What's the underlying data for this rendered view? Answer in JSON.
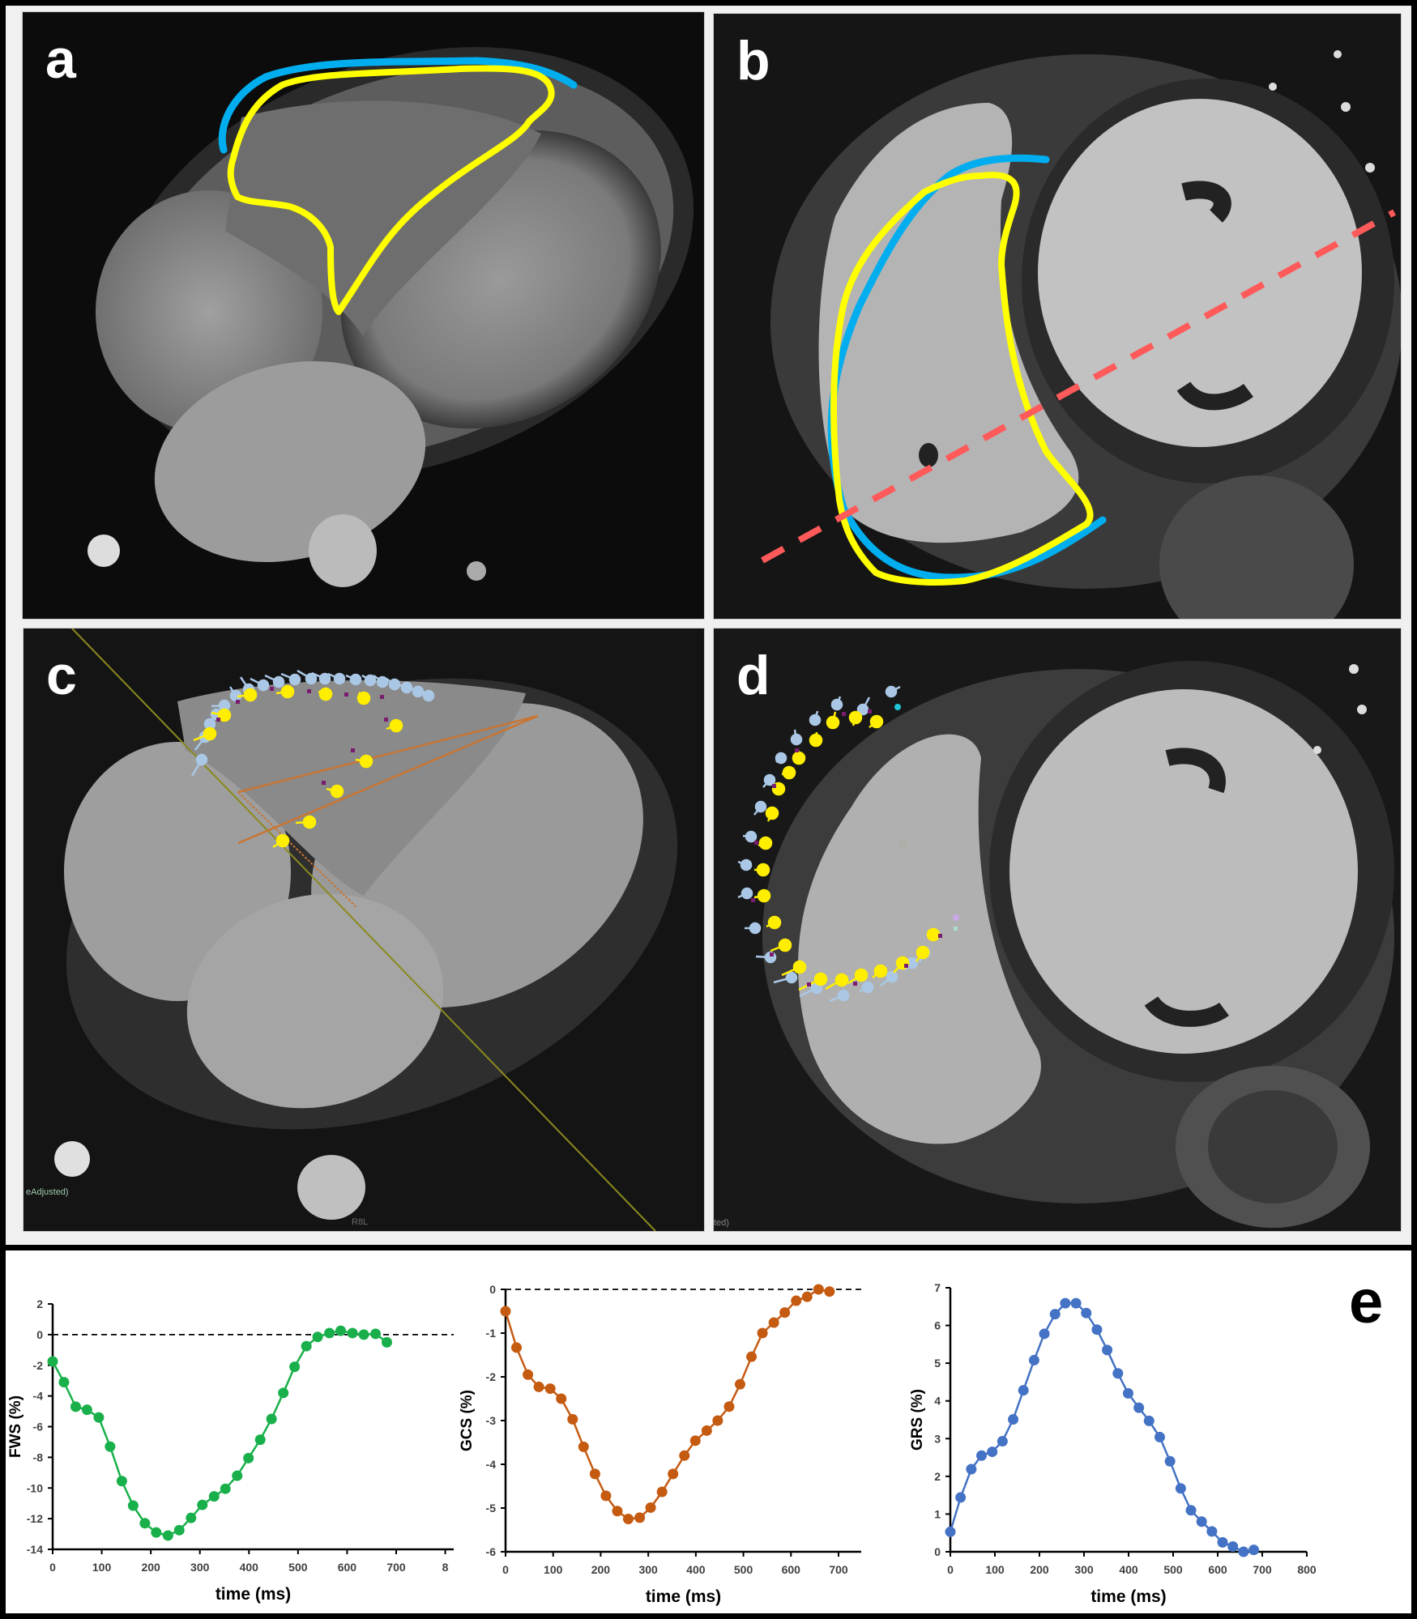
{
  "figure": {
    "panels": [
      {
        "id": "a",
        "label": "a",
        "description": "Four-chamber cine MRI with RV free wall (blue) and RV endocardial (yellow) contours"
      },
      {
        "id": "b",
        "label": "b",
        "description": "Short-axis cine MRI with RV epicardial (blue) and endocardial (yellow) contours and red dashed line"
      },
      {
        "id": "c",
        "label": "c",
        "description": "Four-chamber feature tracking with tracking points",
        "overlay_text": [
          "eAdjusted)",
          "R8L"
        ]
      },
      {
        "id": "d",
        "label": "d",
        "description": "Short-axis feature tracking with tracking points",
        "overlay_text": [
          "ted)"
        ]
      }
    ],
    "charts_label": "e",
    "colors": {
      "epi_contour": "#00aeef",
      "endo_contour": "#ffff00",
      "dashed_line": "#ff5a5a",
      "fws_series": "#19b04b",
      "gcs_series": "#c55a11",
      "grs_series": "#4472c4",
      "tracking_outer": "#aac8e6",
      "tracking_inner": "#ffee00",
      "tracking_mid": "#7a1d6e"
    }
  },
  "chart_data": [
    {
      "type": "line",
      "title": "",
      "xlabel": "time (ms)",
      "ylabel": "FWS (%)",
      "xlim": [
        0,
        800
      ],
      "ylim": [
        -14,
        2
      ],
      "x_ticks": [
        "0",
        "100",
        "200",
        "300",
        "400",
        "500",
        "600",
        "700",
        "8"
      ],
      "y_ticks": [
        "2",
        "0",
        "-2",
        "-4",
        "-6",
        "-8",
        "-10",
        "-12",
        "-14"
      ],
      "reference_line": {
        "y": 0,
        "style": "dashed"
      },
      "grid": false,
      "series": [
        {
          "name": "FWS",
          "color": "#19b04b",
          "x": [
            0,
            23,
            47,
            70,
            94,
            117,
            141,
            164,
            188,
            211,
            235,
            258,
            282,
            305,
            329,
            352,
            376,
            399,
            423,
            446,
            470,
            493,
            517,
            540,
            564,
            587,
            611,
            634,
            658,
            681
          ],
          "values": [
            -1.75,
            -3.1,
            -4.7,
            -4.9,
            -5.4,
            -7.3,
            -9.55,
            -11.15,
            -12.3,
            -12.9,
            -13.1,
            -12.75,
            -11.95,
            -11.1,
            -10.55,
            -10.05,
            -9.2,
            -8.05,
            -6.85,
            -5.5,
            -3.8,
            -2.1,
            -0.75,
            -0.15,
            0.1,
            0.25,
            0.1,
            0.0,
            0.05,
            -0.5
          ]
        }
      ]
    },
    {
      "type": "line",
      "title": "",
      "xlabel": "time (ms)",
      "ylabel": "GCS (%)",
      "xlim": [
        0,
        750
      ],
      "ylim": [
        -6,
        0
      ],
      "x_ticks": [
        "0",
        "100",
        "200",
        "300",
        "400",
        "500",
        "600",
        "700"
      ],
      "y_ticks": [
        "0",
        "-1",
        "-2",
        "-3",
        "-4",
        "-5",
        "-6"
      ],
      "reference_line": {
        "y": 0,
        "style": "dashed"
      },
      "grid": false,
      "series": [
        {
          "name": "GCS",
          "color": "#c55a11",
          "x": [
            0,
            23,
            47,
            70,
            94,
            117,
            141,
            164,
            188,
            211,
            235,
            258,
            282,
            305,
            329,
            352,
            376,
            399,
            423,
            446,
            470,
            493,
            517,
            540,
            564,
            587,
            611,
            634,
            658,
            681
          ],
          "values": [
            -0.5,
            -1.33,
            -1.95,
            -2.23,
            -2.27,
            -2.5,
            -2.97,
            -3.6,
            -4.22,
            -4.72,
            -5.07,
            -5.25,
            -5.22,
            -4.99,
            -4.63,
            -4.22,
            -3.8,
            -3.46,
            -3.23,
            -3.0,
            -2.68,
            -2.17,
            -1.54,
            -1.0,
            -0.76,
            -0.53,
            -0.26,
            -0.17,
            0.0,
            -0.05
          ]
        }
      ]
    },
    {
      "type": "line",
      "title": "",
      "xlabel": "time (ms)",
      "ylabel": "GRS (%)",
      "xlim": [
        0,
        800
      ],
      "ylim": [
        0,
        7
      ],
      "x_ticks": [
        "0",
        "100",
        "200",
        "300",
        "400",
        "500",
        "600",
        "700",
        "800"
      ],
      "y_ticks": [
        "0",
        "1",
        "2",
        "3",
        "4",
        "5",
        "6",
        "7"
      ],
      "grid": false,
      "series": [
        {
          "name": "GRS",
          "color": "#4472c4",
          "x": [
            0,
            23,
            47,
            70,
            94,
            117,
            141,
            164,
            188,
            211,
            235,
            258,
            282,
            305,
            329,
            352,
            376,
            399,
            423,
            446,
            470,
            493,
            517,
            540,
            564,
            587,
            611,
            634,
            658,
            681
          ],
          "values": [
            0.53,
            1.44,
            2.19,
            2.55,
            2.65,
            2.93,
            3.51,
            4.28,
            5.08,
            5.78,
            6.3,
            6.59,
            6.59,
            6.33,
            5.89,
            5.35,
            4.73,
            4.2,
            3.82,
            3.47,
            3.04,
            2.4,
            1.68,
            1.1,
            0.8,
            0.54,
            0.25,
            0.14,
            0.0,
            0.05
          ]
        }
      ]
    }
  ]
}
